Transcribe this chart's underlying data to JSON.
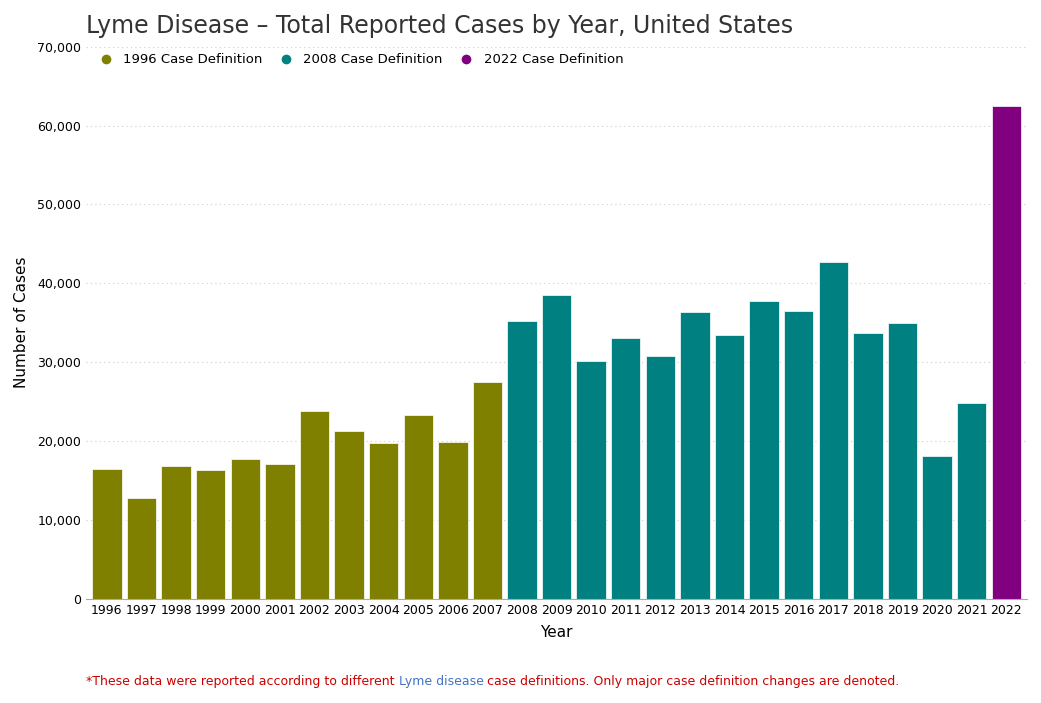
{
  "title": "Lyme Disease – Total Reported Cases by Year, United States",
  "xlabel": "Year",
  "ylabel": "Number of Cases",
  "years": [
    1996,
    1997,
    1998,
    1999,
    2000,
    2001,
    2002,
    2003,
    2004,
    2005,
    2006,
    2007,
    2008,
    2009,
    2010,
    2011,
    2012,
    2013,
    2014,
    2015,
    2016,
    2017,
    2018,
    2019,
    2020,
    2021,
    2022
  ],
  "values": [
    16461,
    12801,
    16802,
    16273,
    17730,
    17029,
    23763,
    21273,
    19804,
    23305,
    19931,
    27444,
    35198,
    38468,
    30158,
    33097,
    30831,
    36307,
    33461,
    37817,
    36429,
    42743,
    33666,
    34945,
    18058,
    24874,
    62551
  ],
  "bar_colors": [
    "#808000",
    "#808000",
    "#808000",
    "#808000",
    "#808000",
    "#808000",
    "#808000",
    "#808000",
    "#808000",
    "#808000",
    "#808000",
    "#808000",
    "#008080",
    "#008080",
    "#008080",
    "#008080",
    "#008080",
    "#008080",
    "#008080",
    "#008080",
    "#008080",
    "#008080",
    "#008080",
    "#008080",
    "#008080",
    "#008080",
    "#800080"
  ],
  "legend_labels": [
    "1996 Case Definition",
    "2008 Case Definition",
    "2022 Case Definition"
  ],
  "legend_colors": [
    "#808000",
    "#008080",
    "#800080"
  ],
  "ylim": [
    0,
    70000
  ],
  "yticks": [
    0,
    10000,
    20000,
    30000,
    40000,
    50000,
    60000,
    70000
  ],
  "background_color": "#ffffff",
  "grid_color": "#cccccc",
  "title_fontsize": 17,
  "title_color": "#333333",
  "axis_label_fontsize": 11,
  "tick_fontsize": 9,
  "footnote_part1": "*These data were reported according to different ",
  "footnote_part2": "Lyme disease",
  "footnote_part3": " case definitions. Only major case definition changes are denoted.",
  "footnote_color1": "#cc0000",
  "footnote_color2": "#4472c4",
  "bar_width": 0.85
}
